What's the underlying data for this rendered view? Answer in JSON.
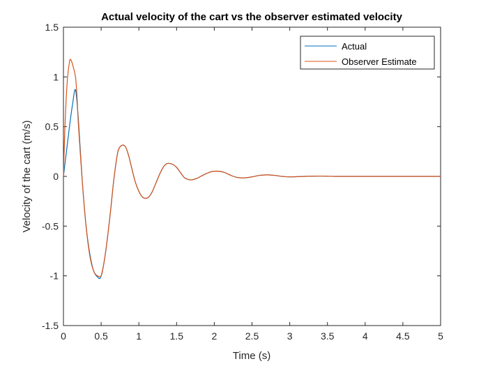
{
  "chart_data": {
    "type": "line",
    "title": "Actual velocity of the cart vs the observer estimated velocity",
    "xlabel": "Time (s)",
    "ylabel": "Velocity of the cart (m/s)",
    "xlim": [
      0,
      5
    ],
    "ylim": [
      -1.5,
      1.5
    ],
    "xticks": [
      0,
      0.5,
      1,
      1.5,
      2,
      2.5,
      3,
      3.5,
      4,
      4.5,
      5
    ],
    "xtick_labels": [
      "0",
      "0.5",
      "1",
      "1.5",
      "2",
      "2.5",
      "3",
      "3.5",
      "4",
      "4.5",
      "5"
    ],
    "yticks": [
      -1.5,
      -1,
      -0.5,
      0,
      0.5,
      1,
      1.5
    ],
    "ytick_labels": [
      "-1.5",
      "-1",
      "-0.5",
      "0",
      "0.5",
      "1",
      "1.5"
    ],
    "grid": false,
    "legend_position": "top-right",
    "series": [
      {
        "name": "Actual",
        "color": "#0072BD",
        "x": [
          0,
          0.04,
          0.08,
          0.12,
          0.16,
          0.2,
          0.25,
          0.3,
          0.35,
          0.4,
          0.45,
          0.49,
          0.53,
          0.57,
          0.62,
          0.67,
          0.72,
          0.77,
          0.82,
          0.86,
          0.9,
          0.95,
          1.0,
          1.05,
          1.1,
          1.14,
          1.18,
          1.23,
          1.28,
          1.33,
          1.38,
          1.45,
          1.5,
          1.55,
          1.6,
          1.65,
          1.7,
          1.77,
          1.82,
          1.9,
          1.98,
          2.08,
          2.15,
          2.22,
          2.3,
          2.4,
          2.5,
          2.6,
          2.7,
          2.8,
          2.9,
          3.0,
          3.2,
          3.4,
          3.6,
          3.8,
          4.0,
          4.5,
          5.0
        ],
        "y": [
          0,
          0.25,
          0.5,
          0.72,
          0.87,
          0.55,
          -0.05,
          -0.5,
          -0.78,
          -0.95,
          -1.01,
          -1.02,
          -0.9,
          -0.7,
          -0.38,
          -0.02,
          0.24,
          0.31,
          0.3,
          0.22,
          0.1,
          -0.05,
          -0.15,
          -0.21,
          -0.22,
          -0.2,
          -0.15,
          -0.06,
          0.03,
          0.1,
          0.13,
          0.12,
          0.09,
          0.04,
          -0.01,
          -0.03,
          -0.035,
          -0.02,
          0.0,
          0.03,
          0.05,
          0.05,
          0.035,
          0.01,
          -0.01,
          -0.015,
          -0.005,
          0.01,
          0.015,
          0.01,
          0.0,
          -0.005,
          0.0,
          0.003,
          0.0,
          0.0,
          0.0,
          0.0,
          0.0
        ]
      },
      {
        "name": "Observer Estimate",
        "color": "#D95319",
        "x": [
          0,
          0.02,
          0.05,
          0.08,
          0.1,
          0.13,
          0.16,
          0.18,
          0.2,
          0.25,
          0.3,
          0.35,
          0.4,
          0.45,
          0.5,
          0.53,
          0.57,
          0.62,
          0.67,
          0.72,
          0.77,
          0.82,
          0.86,
          0.9,
          0.95,
          1.0,
          1.05,
          1.1,
          1.14,
          1.18,
          1.23,
          1.28,
          1.33,
          1.38,
          1.45,
          1.5,
          1.55,
          1.6,
          1.65,
          1.7,
          1.77,
          1.82,
          1.9,
          1.98,
          2.08,
          2.15,
          2.22,
          2.3,
          2.4,
          2.5,
          2.6,
          2.7,
          2.8,
          2.9,
          3.0,
          3.2,
          3.4,
          3.6,
          3.8,
          4.0,
          4.5,
          5.0
        ],
        "y": [
          0,
          0.5,
          0.95,
          1.15,
          1.17,
          1.1,
          1.0,
          0.8,
          0.5,
          -0.05,
          -0.5,
          -0.8,
          -0.95,
          -1.0,
          -1.0,
          -0.9,
          -0.7,
          -0.38,
          -0.02,
          0.24,
          0.31,
          0.3,
          0.22,
          0.1,
          -0.05,
          -0.15,
          -0.21,
          -0.22,
          -0.2,
          -0.15,
          -0.06,
          0.03,
          0.1,
          0.13,
          0.12,
          0.09,
          0.04,
          -0.01,
          -0.03,
          -0.035,
          -0.02,
          0.0,
          0.03,
          0.05,
          0.05,
          0.035,
          0.01,
          -0.01,
          -0.015,
          -0.005,
          0.01,
          0.015,
          0.01,
          0.0,
          -0.005,
          0.0,
          0.003,
          0.0,
          0.0,
          0.0,
          0.0,
          0.0
        ]
      }
    ]
  }
}
